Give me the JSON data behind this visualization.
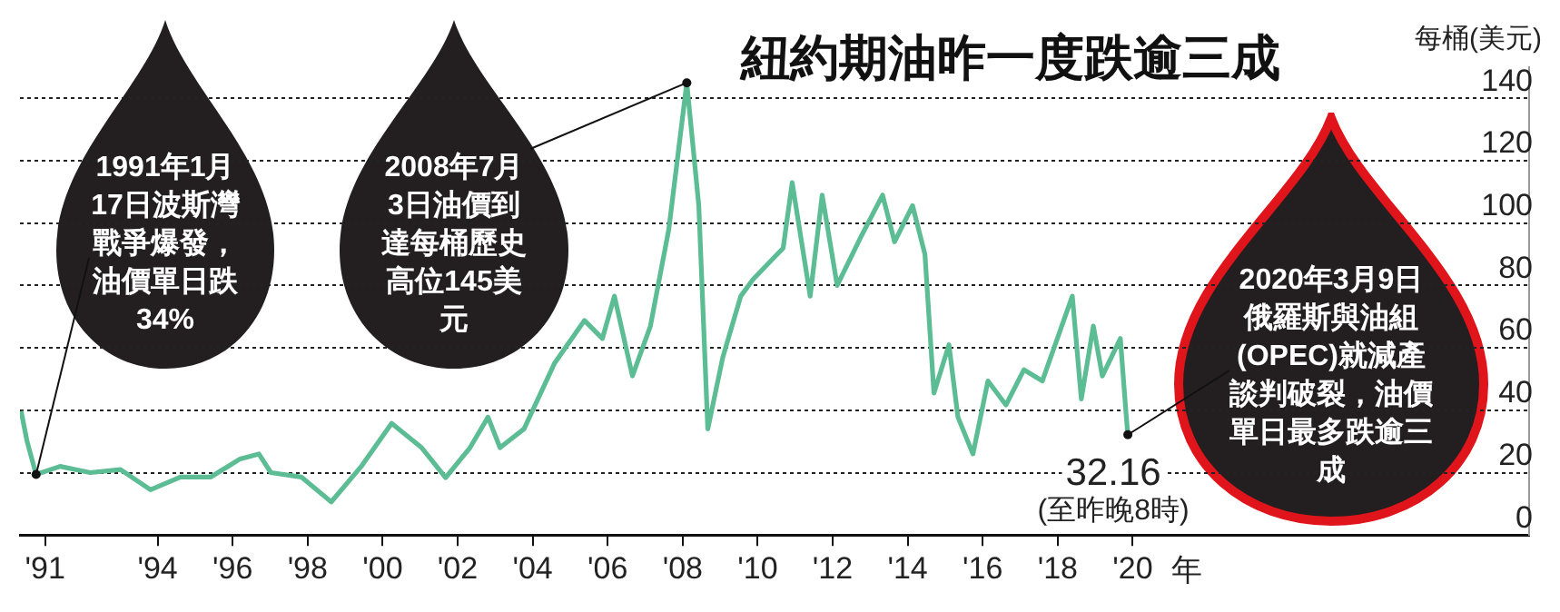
{
  "chart_data": {
    "type": "line",
    "title": "紐約期油昨一度跌逾三成",
    "ylabel": "每桶(美元)",
    "xlabel": "年",
    "x": [
      1990.36,
      1990.52,
      1990.76,
      1991.4,
      1992.2,
      1993.01,
      1993.81,
      1994.61,
      1995.42,
      1996.2,
      1996.7,
      1997.02,
      1997.83,
      1998.63,
      1999.43,
      2000.24,
      2001.04,
      2001.68,
      2002.33,
      2002.81,
      2003.13,
      2003.77,
      2004.58,
      2005.38,
      2005.86,
      2006.18,
      2006.66,
      2007.14,
      2007.63,
      2008.11,
      2008.43,
      2008.67,
      2009.07,
      2009.55,
      2009.88,
      2010.2,
      2010.68,
      2010.92,
      2011.4,
      2011.72,
      2012.12,
      2012.77,
      2013.33,
      2013.65,
      2014.13,
      2014.46,
      2014.7,
      2015.1,
      2015.34,
      2015.74,
      2016.14,
      2016.62,
      2017.1,
      2017.59,
      2018.39,
      2018.63,
      2018.95,
      2019.19,
      2019.67,
      2019.83,
      2019.87
    ],
    "series": [
      {
        "color": "#5cbd95",
        "values": [
          39.7,
          30,
          19.4,
          22,
          20,
          21,
          14.5,
          18.6,
          18.6,
          24.4,
          26,
          20,
          18.6,
          10.6,
          22,
          35.8,
          28,
          18.4,
          28,
          37.8,
          28,
          34,
          55,
          68.8,
          63,
          76.6,
          51,
          67,
          98,
          145,
          105.6,
          34,
          57,
          76.6,
          82,
          86,
          92,
          113,
          76.6,
          109,
          80,
          96,
          109,
          94,
          105.6,
          90,
          45.5,
          61,
          37.8,
          26,
          49.4,
          41.7,
          53,
          49.4,
          76.6,
          43.6,
          67,
          51,
          63,
          37.8,
          32.16
        ]
      }
    ],
    "xlim": [
      1990.33,
      2030.57
    ],
    "xticks": [
      {
        "value": 1991,
        "label": "'91"
      },
      {
        "value": 1994,
        "label": "'94"
      },
      {
        "value": 1996,
        "label": "'96"
      },
      {
        "value": 1998,
        "label": "'98"
      },
      {
        "value": 2000,
        "label": "'00"
      },
      {
        "value": 2002,
        "label": "'02"
      },
      {
        "value": 2004,
        "label": "'04"
      },
      {
        "value": 2006,
        "label": "'06"
      },
      {
        "value": 2008,
        "label": "'08"
      },
      {
        "value": 2010,
        "label": "'10"
      },
      {
        "value": 2012,
        "label": "'12"
      },
      {
        "value": 2014,
        "label": "'14"
      },
      {
        "value": 2016,
        "label": "'16"
      },
      {
        "value": 2018,
        "label": "'18"
      },
      {
        "value": 2020,
        "label": "'20"
      }
    ],
    "ylim": [
      0,
      150
    ],
    "yticks": [
      0,
      20,
      40,
      60,
      80,
      100,
      120,
      140
    ],
    "grid": "y",
    "legend": false,
    "marker": "none",
    "line_style": "solid",
    "annotations": [
      {
        "text": "1991年1月17日波斯灣戰爭爆發，油價單日跌34%",
        "x": 1990.76,
        "y": 19.4
      },
      {
        "text": "2008年7月3日油價到達每桶歷史高位145美元",
        "x": 2008.11,
        "y": 145
      },
      {
        "text": "2020年3月9日俄羅斯與油組(OPEC)就減產談判破裂，油價單日最多跌逾三成",
        "x": 2019.87,
        "y": 32.16
      },
      {
        "text": "32.16",
        "x": 2019.87,
        "y": 32.16
      },
      "(至昨晚8時)"
    ]
  }
}
